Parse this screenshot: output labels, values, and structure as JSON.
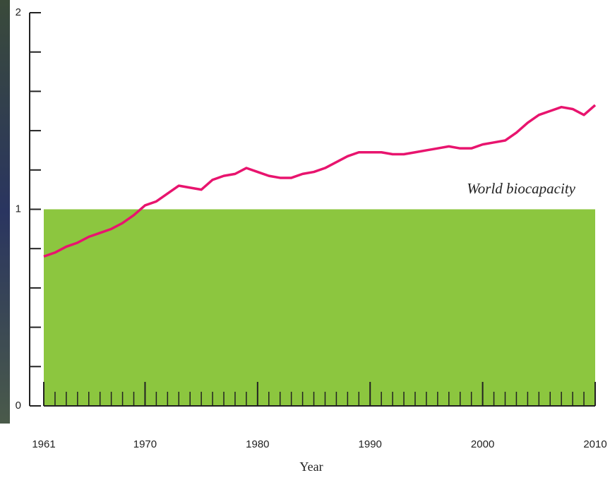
{
  "chart_data": {
    "type": "line",
    "x": [
      1961,
      1962,
      1963,
      1964,
      1965,
      1966,
      1967,
      1968,
      1969,
      1970,
      1971,
      1972,
      1973,
      1974,
      1975,
      1976,
      1977,
      1978,
      1979,
      1980,
      1981,
      1982,
      1983,
      1984,
      1985,
      1986,
      1987,
      1988,
      1989,
      1990,
      1991,
      1992,
      1993,
      1994,
      1995,
      1996,
      1997,
      1998,
      1999,
      2000,
      2001,
      2002,
      2003,
      2004,
      2005,
      2006,
      2007,
      2008,
      2009,
      2010
    ],
    "values": [
      0.76,
      0.78,
      0.81,
      0.83,
      0.86,
      0.88,
      0.9,
      0.93,
      0.97,
      1.02,
      1.04,
      1.08,
      1.12,
      1.11,
      1.1,
      1.15,
      1.17,
      1.18,
      1.21,
      1.19,
      1.17,
      1.16,
      1.16,
      1.18,
      1.19,
      1.21,
      1.24,
      1.27,
      1.29,
      1.29,
      1.29,
      1.28,
      1.28,
      1.29,
      1.3,
      1.31,
      1.32,
      1.31,
      1.31,
      1.33,
      1.34,
      1.35,
      1.39,
      1.44,
      1.48,
      1.5,
      1.52,
      1.51,
      1.48,
      1.53
    ],
    "color": "#e8146e",
    "biocapacity": {
      "label": "World biocapacity",
      "value": 1,
      "color": "#8cc63f"
    },
    "xlabel": "Year",
    "xlim": [
      1961,
      2010
    ],
    "xticks": [
      1961,
      1970,
      1980,
      1990,
      2000,
      2010
    ],
    "xminorticks": [
      1962,
      1963,
      1964,
      1965,
      1966,
      1967,
      1968,
      1969,
      1971,
      1972,
      1973,
      1974,
      1975,
      1976,
      1977,
      1978,
      1979,
      1981,
      1982,
      1983,
      1984,
      1985,
      1986,
      1987,
      1988,
      1989,
      1991,
      1992,
      1993,
      1994,
      1995,
      1996,
      1997,
      1998,
      1999,
      2001,
      2002,
      2003,
      2004,
      2005,
      2006,
      2007,
      2008,
      2009
    ],
    "ylim": [
      0,
      2
    ],
    "yticks": [
      0,
      1,
      2
    ],
    "yminorticks": [
      0.2,
      0.4,
      0.6,
      0.8,
      1.2,
      1.4,
      1.6,
      1.8
    ]
  }
}
